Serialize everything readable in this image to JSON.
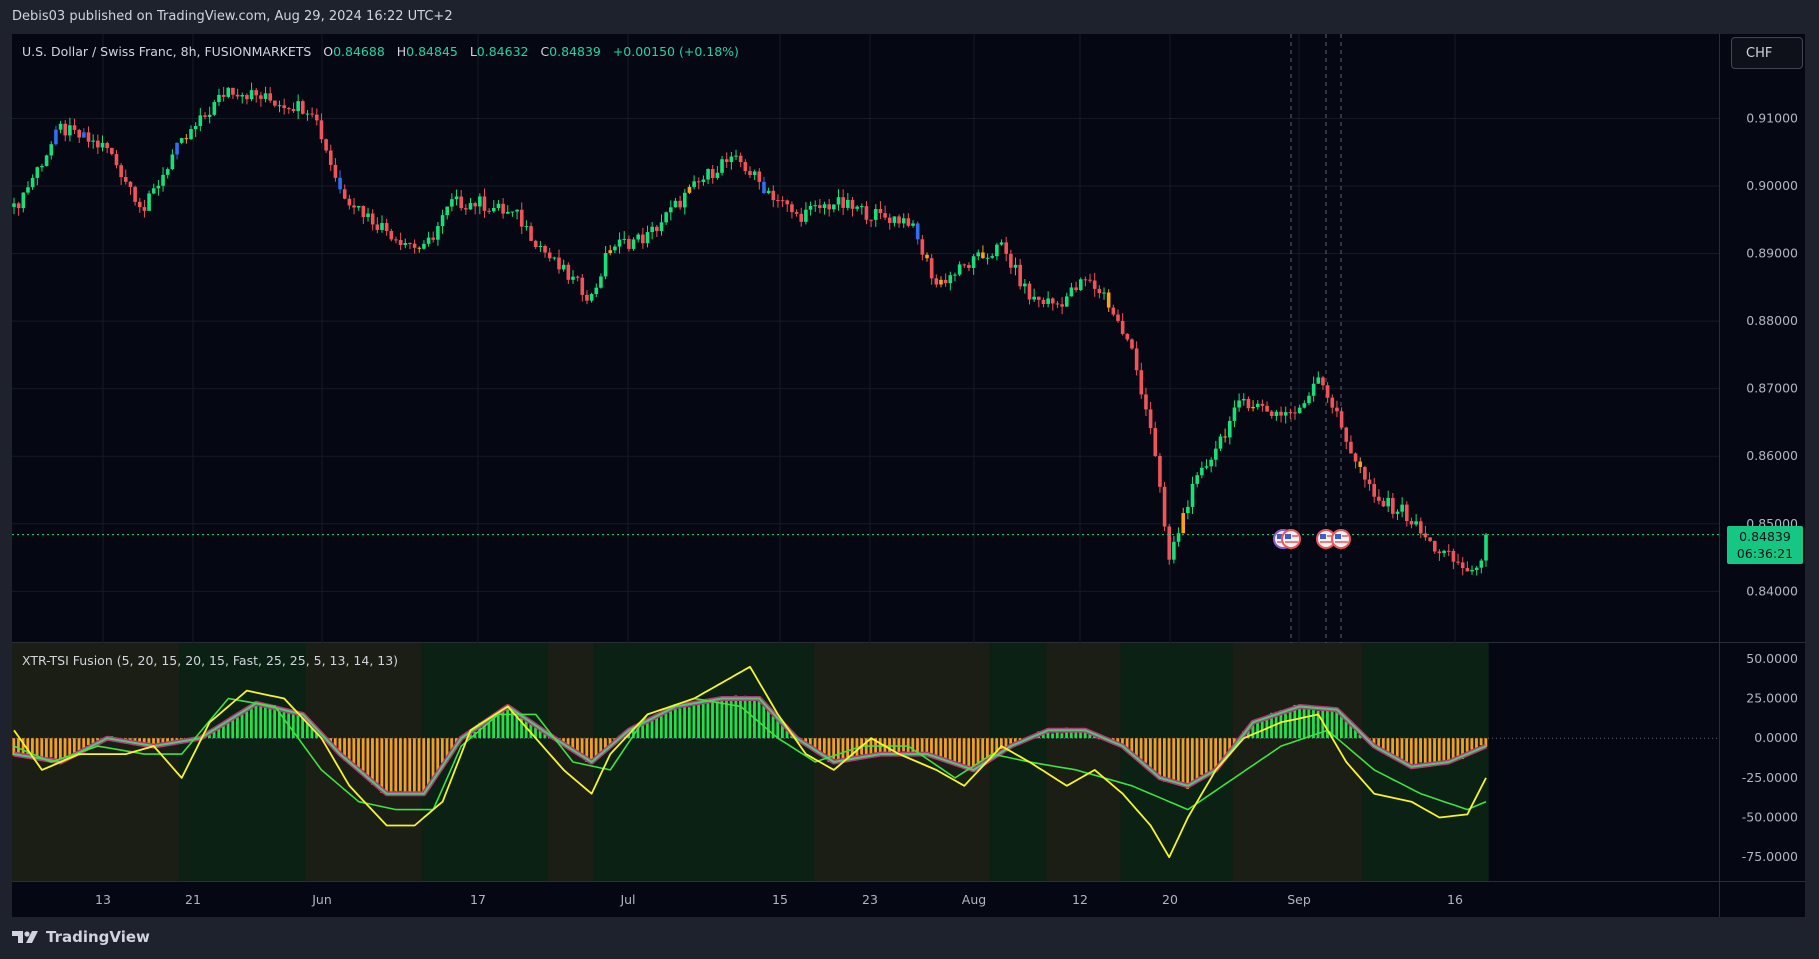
{
  "header": {
    "published": "Debis03 published on TradingView.com, Aug 29, 2024 16:22 UTC+2"
  },
  "symbol": {
    "name": "U.S. Dollar / Swiss Franc, 8h, FUSIONMARKETS",
    "o_label": "O",
    "o": "0.84688",
    "h_label": "H",
    "h": "0.84845",
    "l_label": "L",
    "l": "0.84632",
    "c_label": "C",
    "c": "0.84839",
    "change": "+0.00150 (+0.18%)"
  },
  "currency_button": "CHF",
  "last_price": {
    "price": "0.84839",
    "countdown": "06:36:21"
  },
  "indicator": {
    "label": "XTR-TSI Fusion (5, 20, 15, 20, 15, Fast, 25, 25, 5, 13, 14, 13)"
  },
  "footer": {
    "brand": "TradingView"
  },
  "colors": {
    "background": "#050813",
    "bull": "#16e07a",
    "bear": "#f0545a",
    "orange": "#f7a21b",
    "blue": "#2f6ff0",
    "hist_pos": "#22e04a",
    "hist_neg": "#f2a024",
    "yellow_line": "#f5f52a",
    "green_line": "#3fe23f"
  },
  "chart_data": [
    {
      "type": "candlestick",
      "title": "U.S. Dollar / Swiss Franc, 8h, FUSIONMARKETS",
      "xlabel": "",
      "ylabel": "",
      "x_ticks": [
        "13",
        "21",
        "Jun",
        "17",
        "Jul",
        "15",
        "23",
        "Aug",
        "12",
        "20",
        "Sep",
        "16"
      ],
      "y_ticks": [
        "0.91000",
        "0.90000",
        "0.89000",
        "0.88000",
        "0.87000",
        "0.86000",
        "0.85000",
        "0.84000"
      ],
      "ylim": [
        0.8325,
        0.9225
      ],
      "last_close": 0.84839,
      "close_path": [
        {
          "i": 0,
          "close": 0.8965
        },
        {
          "i": 10,
          "close": 0.9085
        },
        {
          "i": 20,
          "close": 0.9055
        },
        {
          "i": 28,
          "close": 0.8965
        },
        {
          "i": 34,
          "close": 0.9045
        },
        {
          "i": 46,
          "close": 0.9145
        },
        {
          "i": 56,
          "close": 0.9125
        },
        {
          "i": 64,
          "close": 0.9115
        },
        {
          "i": 70,
          "close": 0.8995
        },
        {
          "i": 76,
          "close": 0.8955
        },
        {
          "i": 82,
          "close": 0.8925
        },
        {
          "i": 88,
          "close": 0.8905
        },
        {
          "i": 94,
          "close": 0.8975
        },
        {
          "i": 100,
          "close": 0.8975
        },
        {
          "i": 108,
          "close": 0.8955
        },
        {
          "i": 116,
          "close": 0.8885
        },
        {
          "i": 124,
          "close": 0.8835
        },
        {
          "i": 128,
          "close": 0.891
        },
        {
          "i": 136,
          "close": 0.8925
        },
        {
          "i": 144,
          "close": 0.8985
        },
        {
          "i": 152,
          "close": 0.9035
        },
        {
          "i": 156,
          "close": 0.9035
        },
        {
          "i": 160,
          "close": 0.9005
        },
        {
          "i": 168,
          "close": 0.8955
        },
        {
          "i": 176,
          "close": 0.8975
        },
        {
          "i": 186,
          "close": 0.8955
        },
        {
          "i": 192,
          "close": 0.895
        },
        {
          "i": 198,
          "close": 0.8855
        },
        {
          "i": 204,
          "close": 0.888
        },
        {
          "i": 212,
          "close": 0.891
        },
        {
          "i": 218,
          "close": 0.8835
        },
        {
          "i": 224,
          "close": 0.8825
        },
        {
          "i": 230,
          "close": 0.886
        },
        {
          "i": 234,
          "close": 0.884
        },
        {
          "i": 240,
          "close": 0.8755
        },
        {
          "i": 244,
          "close": 0.8645
        },
        {
          "i": 248,
          "close": 0.8445
        },
        {
          "i": 252,
          "close": 0.8535
        },
        {
          "i": 258,
          "close": 0.8615
        },
        {
          "i": 264,
          "close": 0.8685
        },
        {
          "i": 270,
          "close": 0.8665
        },
        {
          "i": 276,
          "close": 0.8665
        },
        {
          "i": 280,
          "close": 0.8725
        },
        {
          "i": 286,
          "close": 0.8625
        },
        {
          "i": 292,
          "close": 0.8535
        },
        {
          "i": 298,
          "close": 0.852
        },
        {
          "i": 304,
          "close": 0.847
        },
        {
          "i": 310,
          "close": 0.844
        },
        {
          "i": 314,
          "close": 0.8425
        },
        {
          "i": 316,
          "close": 0.84839
        }
      ],
      "price_line": 0.84839
    },
    {
      "type": "line",
      "title": "XTR-TSI Fusion (5, 20, 15, 20, 15, Fast, 25, 25, 5, 13, 14, 13)",
      "y_ticks": [
        "50.0000",
        "25.0000",
        "0.0000",
        "-25.0000",
        "-50.0000",
        "-75.0000"
      ],
      "ylim": [
        -90,
        60
      ],
      "series": [
        {
          "values_at": [
            {
              "i": 0,
              "v": 5
            },
            {
              "i": 6,
              "v": -20
            },
            {
              "i": 14,
              "v": -10
            },
            {
              "i": 24,
              "v": -10
            },
            {
              "i": 30,
              "v": -5
            },
            {
              "i": 36,
              "v": -25
            },
            {
              "i": 42,
              "v": 10
            },
            {
              "i": 50,
              "v": 30
            },
            {
              "i": 58,
              "v": 25
            },
            {
              "i": 66,
              "v": 0
            },
            {
              "i": 72,
              "v": -30
            },
            {
              "i": 80,
              "v": -55
            },
            {
              "i": 86,
              "v": -55
            },
            {
              "i": 92,
              "v": -40
            },
            {
              "i": 98,
              "v": 5
            },
            {
              "i": 106,
              "v": 20
            },
            {
              "i": 112,
              "v": 0
            },
            {
              "i": 118,
              "v": -20
            },
            {
              "i": 124,
              "v": -35
            },
            {
              "i": 128,
              "v": -10
            },
            {
              "i": 136,
              "v": 15
            },
            {
              "i": 146,
              "v": 25
            },
            {
              "i": 152,
              "v": 35
            },
            {
              "i": 158,
              "v": 45
            },
            {
              "i": 164,
              "v": 15
            },
            {
              "i": 170,
              "v": -10
            },
            {
              "i": 176,
              "v": -20
            },
            {
              "i": 184,
              "v": 0
            },
            {
              "i": 190,
              "v": -10
            },
            {
              "i": 198,
              "v": -20
            },
            {
              "i": 204,
              "v": -30
            },
            {
              "i": 212,
              "v": -5
            },
            {
              "i": 218,
              "v": -15
            },
            {
              "i": 226,
              "v": -30
            },
            {
              "i": 232,
              "v": -20
            },
            {
              "i": 238,
              "v": -35
            },
            {
              "i": 244,
              "v": -55
            },
            {
              "i": 248,
              "v": -75
            },
            {
              "i": 252,
              "v": -50
            },
            {
              "i": 258,
              "v": -20
            },
            {
              "i": 264,
              "v": 0
            },
            {
              "i": 272,
              "v": 10
            },
            {
              "i": 280,
              "v": 15
            },
            {
              "i": 286,
              "v": -15
            },
            {
              "i": 292,
              "v": -35
            },
            {
              "i": 300,
              "v": -40
            },
            {
              "i": 306,
              "v": -50
            },
            {
              "i": 312,
              "v": -48
            },
            {
              "i": 316,
              "v": -25
            }
          ]
        },
        {
          "values_at": [
            {
              "i": 0,
              "v": -5
            },
            {
              "i": 8,
              "v": -15
            },
            {
              "i": 18,
              "v": -5
            },
            {
              "i": 28,
              "v": -10
            },
            {
              "i": 36,
              "v": -10
            },
            {
              "i": 46,
              "v": 25
            },
            {
              "i": 56,
              "v": 20
            },
            {
              "i": 66,
              "v": -20
            },
            {
              "i": 74,
              "v": -40
            },
            {
              "i": 82,
              "v": -45
            },
            {
              "i": 90,
              "v": -45
            },
            {
              "i": 96,
              "v": -5
            },
            {
              "i": 104,
              "v": 15
            },
            {
              "i": 112,
              "v": 15
            },
            {
              "i": 120,
              "v": -15
            },
            {
              "i": 128,
              "v": -20
            },
            {
              "i": 136,
              "v": 15
            },
            {
              "i": 146,
              "v": 25
            },
            {
              "i": 156,
              "v": 20
            },
            {
              "i": 164,
              "v": 0
            },
            {
              "i": 172,
              "v": -15
            },
            {
              "i": 182,
              "v": -5
            },
            {
              "i": 192,
              "v": -5
            },
            {
              "i": 202,
              "v": -25
            },
            {
              "i": 210,
              "v": -10
            },
            {
              "i": 218,
              "v": -15
            },
            {
              "i": 228,
              "v": -20
            },
            {
              "i": 240,
              "v": -30
            },
            {
              "i": 252,
              "v": -45
            },
            {
              "i": 262,
              "v": -25
            },
            {
              "i": 272,
              "v": -5
            },
            {
              "i": 282,
              "v": 5
            },
            {
              "i": 292,
              "v": -20
            },
            {
              "i": 302,
              "v": -35
            },
            {
              "i": 312,
              "v": -45
            },
            {
              "i": 316,
              "v": -40
            }
          ]
        },
        {
          "values_at": [
            {
              "i": 0,
              "v": -10
            },
            {
              "i": 10,
              "v": -15
            },
            {
              "i": 20,
              "v": 0
            },
            {
              "i": 30,
              "v": -5
            },
            {
              "i": 40,
              "v": 0
            },
            {
              "i": 52,
              "v": 22
            },
            {
              "i": 62,
              "v": 15
            },
            {
              "i": 70,
              "v": -10
            },
            {
              "i": 80,
              "v": -35
            },
            {
              "i": 88,
              "v": -35
            },
            {
              "i": 96,
              "v": 0
            },
            {
              "i": 106,
              "v": 20
            },
            {
              "i": 116,
              "v": 0
            },
            {
              "i": 124,
              "v": -15
            },
            {
              "i": 132,
              "v": 5
            },
            {
              "i": 142,
              "v": 20
            },
            {
              "i": 152,
              "v": 25
            },
            {
              "i": 160,
              "v": 25
            },
            {
              "i": 168,
              "v": 0
            },
            {
              "i": 176,
              "v": -15
            },
            {
              "i": 186,
              "v": -10
            },
            {
              "i": 196,
              "v": -10
            },
            {
              "i": 206,
              "v": -20
            },
            {
              "i": 214,
              "v": -5
            },
            {
              "i": 222,
              "v": 5
            },
            {
              "i": 230,
              "v": 5
            },
            {
              "i": 238,
              "v": -5
            },
            {
              "i": 246,
              "v": -25
            },
            {
              "i": 252,
              "v": -30
            },
            {
              "i": 258,
              "v": -20
            },
            {
              "i": 266,
              "v": 10
            },
            {
              "i": 276,
              "v": 20
            },
            {
              "i": 284,
              "v": 18
            },
            {
              "i": 292,
              "v": -5
            },
            {
              "i": 300,
              "v": -18
            },
            {
              "i": 308,
              "v": -15
            },
            {
              "i": 316,
              "v": -5
            }
          ]
        }
      ]
    }
  ]
}
